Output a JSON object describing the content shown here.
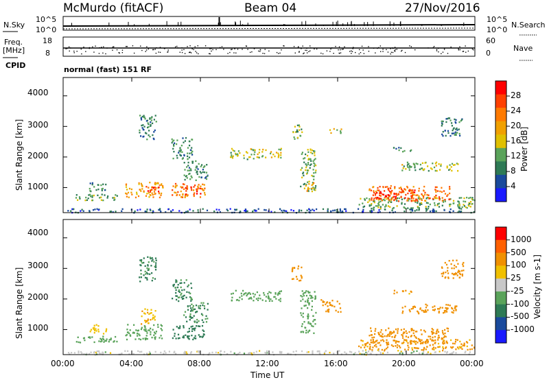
{
  "header": {
    "station": "McMurdo (fitACF)",
    "beam": "Beam 04",
    "date": "27/Nov/2016",
    "mode_line": "normal (fast) 151 RF"
  },
  "housekeeping": {
    "nsky_label": "N.Sky",
    "nsky_ticks": [
      "10^5",
      "10^0"
    ],
    "nsearch_label": "N.Search",
    "freq_label_1": "Freq.",
    "freq_label_2": "[MHz]",
    "freq_ticks": [
      "18",
      "8"
    ],
    "nave_label": "Nave",
    "nave_ticks": [
      "60",
      "0"
    ],
    "cpid_label": "CPID"
  },
  "colors": {
    "power": [
      "#1a1aff",
      "#1a4a9c",
      "#2e7a55",
      "#5aa35a",
      "#e0c000",
      "#f0a000",
      "#ff7a00",
      "#ff4000",
      "#ff0000"
    ],
    "velocity": [
      "#1a1aff",
      "#1a4a9c",
      "#2e7a55",
      "#5aa35a",
      "#c8c8c8",
      "#f0c000",
      "#f09000",
      "#ff6000",
      "#ff0000"
    ]
  },
  "chart_data": [
    {
      "type": "heatmap",
      "panel": "power",
      "xlabel": "",
      "ylabel": "Slant Range [km]",
      "x_ticks": [
        "00:00",
        "04:00",
        "08:00",
        "12:00",
        "16:00",
        "20:00",
        "00:00"
      ],
      "y_ticks": [
        "4000",
        "3000",
        "2000",
        "1000"
      ],
      "ylim": [
        180,
        4600
      ],
      "xlim_hours": [
        0,
        24
      ],
      "colorbar": {
        "label": "Power [dB]",
        "ticks": [
          "28",
          "24",
          "20",
          "16",
          "12",
          "8",
          "4"
        ],
        "range": [
          0,
          32
        ]
      },
      "regions": [
        {
          "t0": 0.2,
          "t1": 24,
          "r0": 200,
          "r1": 330,
          "value": 6
        },
        {
          "t0": 0.6,
          "t1": 3.2,
          "r0": 600,
          "r1": 800,
          "value": 12
        },
        {
          "t0": 1.5,
          "t1": 2.5,
          "r0": 880,
          "r1": 1180,
          "value": 10
        },
        {
          "t0": 3.6,
          "t1": 5.8,
          "r0": 700,
          "r1": 1200,
          "value": 20
        },
        {
          "t0": 4.8,
          "t1": 5.6,
          "r0": 850,
          "r1": 1100,
          "value": 28
        },
        {
          "t0": 6.3,
          "t1": 8.3,
          "r0": 700,
          "r1": 1150,
          "value": 22
        },
        {
          "t0": 7.1,
          "t1": 8.0,
          "r0": 780,
          "r1": 1050,
          "value": 28
        },
        {
          "t0": 7.0,
          "t1": 8.4,
          "r0": 1250,
          "r1": 1900,
          "value": 10
        },
        {
          "t0": 4.4,
          "t1": 5.4,
          "r0": 2600,
          "r1": 3400,
          "value": 9
        },
        {
          "t0": 6.3,
          "t1": 7.5,
          "r0": 1950,
          "r1": 2650,
          "value": 10
        },
        {
          "t0": 9.7,
          "t1": 11.2,
          "r0": 1950,
          "r1": 2300,
          "value": 14
        },
        {
          "t0": 11.2,
          "t1": 12.7,
          "r0": 2000,
          "r1": 2300,
          "value": 16
        },
        {
          "t0": 13.3,
          "t1": 13.9,
          "r0": 2600,
          "r1": 3100,
          "value": 12
        },
        {
          "t0": 13.8,
          "t1": 14.7,
          "r0": 900,
          "r1": 2300,
          "value": 12
        },
        {
          "t0": 14.0,
          "t1": 14.6,
          "r0": 900,
          "r1": 1200,
          "value": 20
        },
        {
          "t0": 15.5,
          "t1": 16.2,
          "r0": 2800,
          "r1": 2950,
          "value": 16
        },
        {
          "t0": 17.2,
          "t1": 24,
          "r0": 330,
          "r1": 700,
          "value": 12
        },
        {
          "t0": 17.8,
          "t1": 22.5,
          "r0": 580,
          "r1": 1080,
          "value": 24
        },
        {
          "t0": 18.0,
          "t1": 20.5,
          "r0": 650,
          "r1": 950,
          "value": 28
        },
        {
          "t0": 19.7,
          "t1": 23.0,
          "r0": 1550,
          "r1": 1850,
          "value": 14
        },
        {
          "t0": 19.2,
          "t1": 20.3,
          "r0": 2200,
          "r1": 2350,
          "value": 9
        },
        {
          "t0": 22.0,
          "t1": 23.3,
          "r0": 2700,
          "r1": 3300,
          "value": 8
        }
      ]
    },
    {
      "type": "heatmap",
      "panel": "velocity",
      "xlabel": "Time UT",
      "ylabel": "Slant Range [km]",
      "x_ticks": [
        "00:00",
        "04:00",
        "08:00",
        "12:00",
        "16:00",
        "20:00",
        "00:00"
      ],
      "y_ticks": [
        "4000",
        "3000",
        "2000",
        "1000"
      ],
      "ylim": [
        180,
        4600
      ],
      "xlim_hours": [
        0,
        24
      ],
      "colorbar": {
        "label": "Velocity [m s-1]",
        "ticks": [
          "1000",
          "500",
          "100",
          "25",
          "-25",
          "-100",
          "-500",
          "-1000"
        ],
        "range": [
          -1000,
          1000
        ]
      },
      "regions": [
        {
          "t0": 0.2,
          "t1": 24,
          "r0": 200,
          "r1": 330,
          "value": 0
        },
        {
          "t0": 0.6,
          "t1": 3.2,
          "r0": 600,
          "r1": 800,
          "value": 60
        },
        {
          "t0": 1.5,
          "t1": 2.5,
          "r0": 880,
          "r1": 1180,
          "value": -60
        },
        {
          "t0": 3.6,
          "t1": 5.8,
          "r0": 700,
          "r1": 1200,
          "value": 60
        },
        {
          "t0": 4.5,
          "t1": 5.4,
          "r0": 1200,
          "r1": 1700,
          "value": -80
        },
        {
          "t0": 6.3,
          "t1": 8.3,
          "r0": 700,
          "r1": 1150,
          "value": 200
        },
        {
          "t0": 7.0,
          "t1": 8.4,
          "r0": 1250,
          "r1": 1900,
          "value": 120
        },
        {
          "t0": 4.4,
          "t1": 5.4,
          "r0": 2600,
          "r1": 3400,
          "value": 150
        },
        {
          "t0": 6.3,
          "t1": 7.5,
          "r0": 1950,
          "r1": 2650,
          "value": 120
        },
        {
          "t0": 9.7,
          "t1": 12.7,
          "r0": 1950,
          "r1": 2300,
          "value": 60
        },
        {
          "t0": 13.3,
          "t1": 13.9,
          "r0": 2600,
          "r1": 3100,
          "value": -200
        },
        {
          "t0": 13.8,
          "t1": 14.7,
          "r0": 900,
          "r1": 2300,
          "value": 60
        },
        {
          "t0": 15.0,
          "t1": 16.2,
          "r0": 1600,
          "r1": 2000,
          "value": -200
        },
        {
          "t0": 17.2,
          "t1": 24,
          "r0": 330,
          "r1": 700,
          "value": -150
        },
        {
          "t0": 17.8,
          "t1": 22.5,
          "r0": 580,
          "r1": 1080,
          "value": -250
        },
        {
          "t0": 19.7,
          "t1": 23.0,
          "r0": 1550,
          "r1": 1850,
          "value": -300
        },
        {
          "t0": 19.2,
          "t1": 20.3,
          "r0": 2200,
          "r1": 2350,
          "value": -150
        },
        {
          "t0": 22.0,
          "t1": 23.3,
          "r0": 2700,
          "r1": 3300,
          "value": -200
        }
      ]
    }
  ]
}
